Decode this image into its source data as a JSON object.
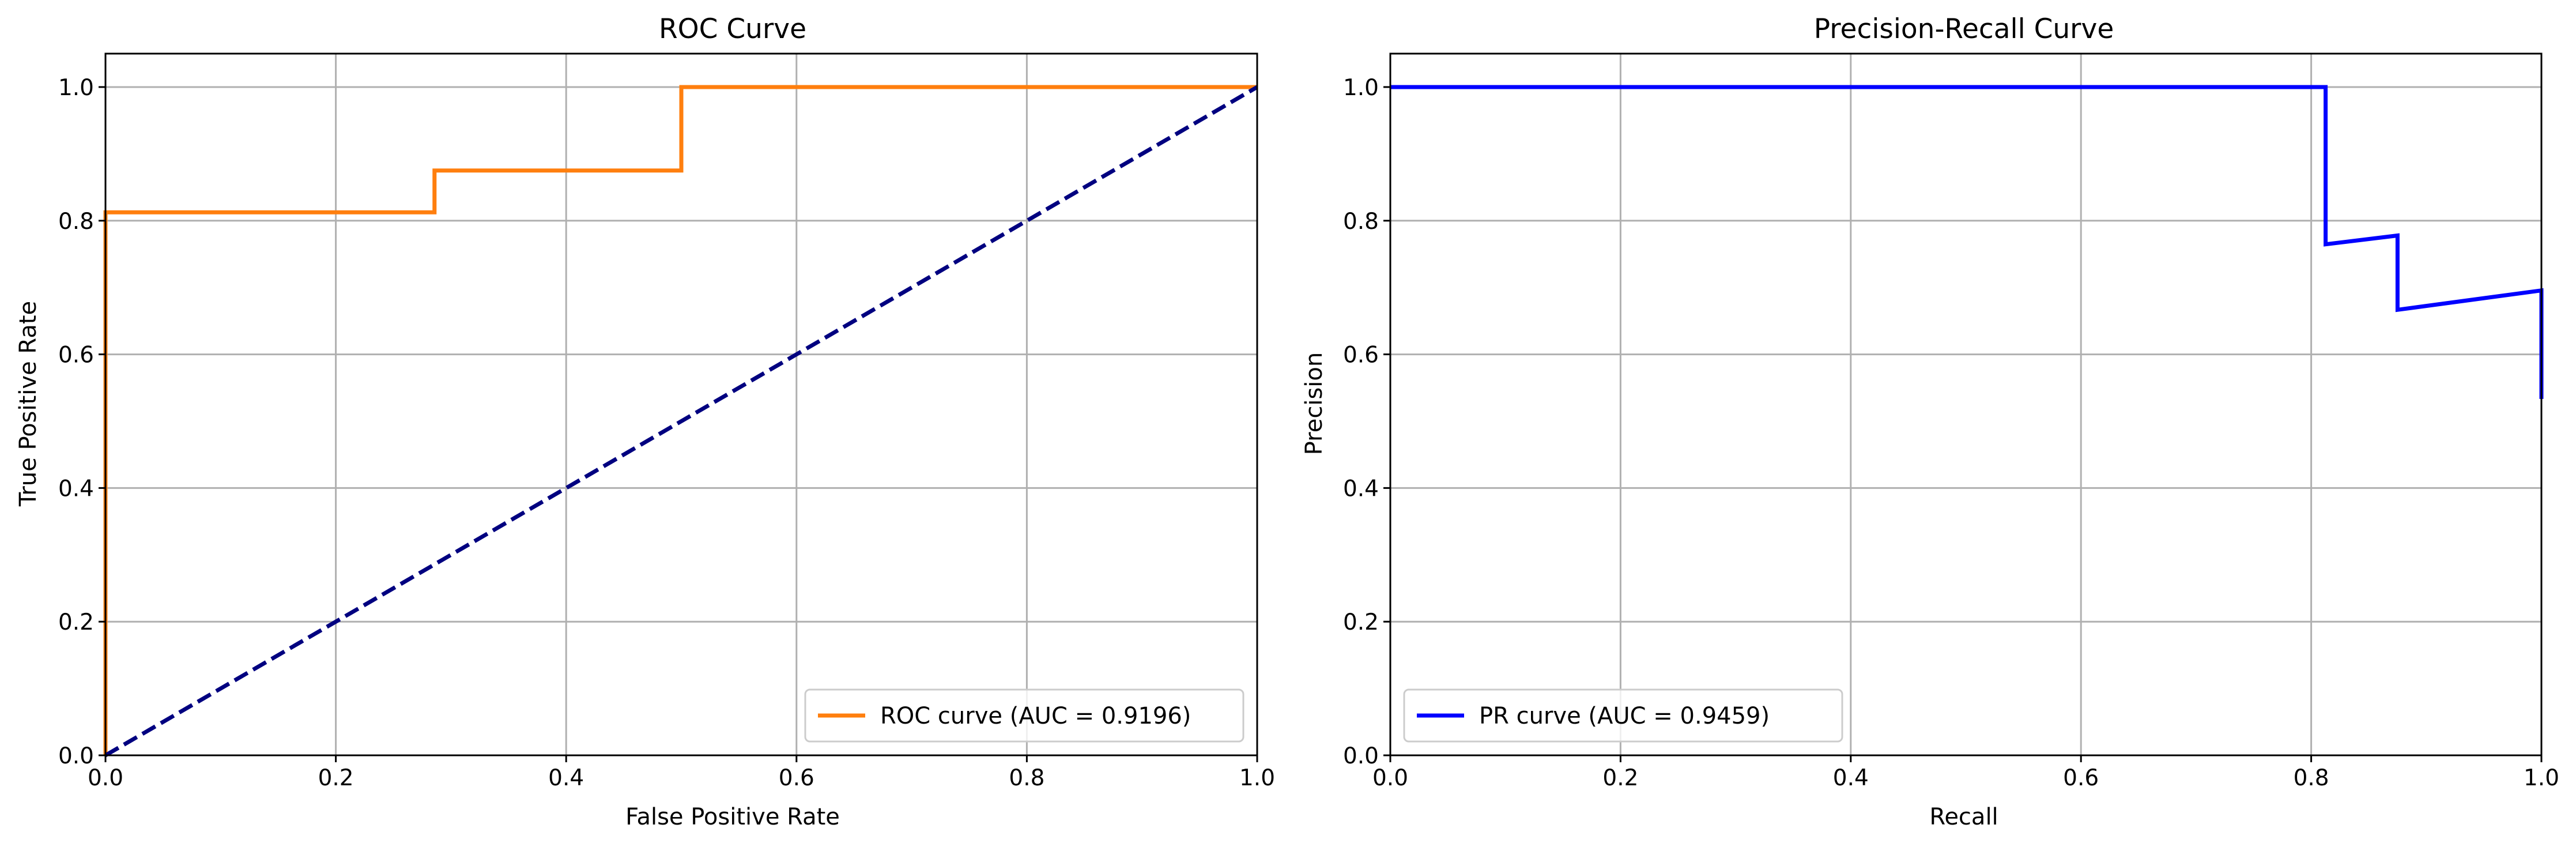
{
  "chart_data": [
    {
      "type": "line",
      "title": "ROC Curve",
      "xlabel": "False Positive Rate",
      "ylabel": "True Positive Rate",
      "xlim": [
        0.0,
        1.0
      ],
      "ylim": [
        0.0,
        1.05
      ],
      "xticks": [
        "0.0",
        "0.2",
        "0.4",
        "0.6",
        "0.8",
        "1.0"
      ],
      "yticks": [
        "0.0",
        "0.2",
        "0.4",
        "0.6",
        "0.8",
        "1.0"
      ],
      "grid": true,
      "legend_position": "lower-right",
      "series": [
        {
          "name": "ROC curve (AUC = 0.9196)",
          "color": "#ff7f0e",
          "dash": "solid",
          "x": [
            0.0,
            0.0,
            0.2857,
            0.2857,
            0.5,
            0.5,
            1.0
          ],
          "y": [
            0.0,
            0.8125,
            0.8125,
            0.875,
            0.875,
            1.0,
            1.0
          ]
        },
        {
          "color": "#000080",
          "dash": "dashed",
          "x": [
            0.0,
            1.0
          ],
          "y": [
            0.0,
            1.0
          ]
        }
      ]
    },
    {
      "type": "line",
      "title": "Precision-Recall Curve",
      "xlabel": "Recall",
      "ylabel": "Precision",
      "xlim": [
        0.0,
        1.0
      ],
      "ylim": [
        0.0,
        1.05
      ],
      "xticks": [
        "0.0",
        "0.2",
        "0.4",
        "0.6",
        "0.8",
        "1.0"
      ],
      "yticks": [
        "0.0",
        "0.2",
        "0.4",
        "0.6",
        "0.8",
        "1.0"
      ],
      "grid": true,
      "legend_position": "lower-left",
      "series": [
        {
          "name": "PR curve (AUC = 0.9459)",
          "color": "#0000ff",
          "dash": "solid",
          "x": [
            0.0,
            0.8125,
            0.8125,
            0.875,
            0.875,
            1.0,
            1.0
          ],
          "y": [
            1.0,
            1.0,
            0.7647,
            0.7778,
            0.6667,
            0.6957,
            0.5333
          ]
        }
      ]
    }
  ]
}
